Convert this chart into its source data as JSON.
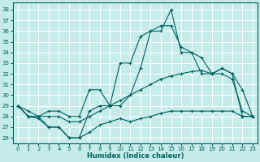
{
  "xlabel": "Humidex (Indice chaleur)",
  "bg_color": "#c5ece8",
  "grid_color": "#ffffff",
  "line_color": "#006060",
  "ylim": [
    25.5,
    38.7
  ],
  "xlim": [
    -0.5,
    23.5
  ],
  "yticks": [
    26,
    27,
    28,
    29,
    30,
    31,
    32,
    33,
    34,
    35,
    36,
    37,
    38
  ],
  "xticks": [
    0,
    1,
    2,
    3,
    4,
    5,
    6,
    7,
    8,
    9,
    10,
    11,
    12,
    13,
    14,
    15,
    16,
    17,
    18,
    19,
    20,
    21,
    22,
    23
  ],
  "series": [
    {
      "x": [
        0,
        1,
        2,
        3,
        4,
        5,
        6,
        7,
        8,
        9,
        10,
        11,
        12,
        13,
        14,
        15,
        16,
        17,
        18,
        19,
        20,
        21,
        22,
        23
      ],
      "y": [
        29.0,
        28.0,
        28.0,
        27.0,
        27.0,
        26.0,
        26.0,
        28.5,
        29.0,
        29.0,
        33.0,
        33.0,
        35.5,
        36.0,
        36.0,
        38.0,
        34.0,
        34.0,
        33.5,
        32.0,
        32.5,
        32.0,
        30.5,
        28.0
      ]
    },
    {
      "x": [
        0,
        1,
        2,
        3,
        4,
        5,
        6,
        7,
        8,
        9,
        10,
        11,
        12,
        13,
        14,
        15,
        16,
        17,
        18,
        19,
        20,
        21,
        22,
        23
      ],
      "y": [
        29.0,
        28.0,
        28.0,
        28.5,
        28.5,
        28.0,
        28.0,
        30.5,
        30.5,
        29.0,
        29.0,
        30.0,
        32.5,
        36.0,
        36.5,
        36.5,
        34.5,
        34.0,
        32.0,
        32.0,
        32.5,
        32.0,
        28.0,
        28.0
      ]
    },
    {
      "x": [
        0,
        1,
        2,
        3,
        4,
        5,
        6,
        7,
        8,
        9,
        10,
        11,
        12,
        13,
        14,
        15,
        16,
        17,
        18,
        19,
        20,
        21,
        22,
        23
      ],
      "y": [
        29.0,
        28.5,
        28.0,
        28.0,
        28.0,
        27.5,
        27.5,
        28.0,
        28.5,
        29.0,
        29.5,
        30.0,
        30.5,
        31.0,
        31.5,
        31.8,
        32.0,
        32.2,
        32.3,
        32.0,
        32.0,
        31.5,
        28.5,
        28.0
      ]
    },
    {
      "x": [
        0,
        1,
        2,
        3,
        4,
        5,
        6,
        7,
        8,
        9,
        10,
        11,
        12,
        13,
        14,
        15,
        16,
        17,
        18,
        19,
        20,
        21,
        22,
        23
      ],
      "y": [
        29.0,
        28.0,
        27.8,
        27.0,
        27.0,
        26.0,
        26.0,
        26.5,
        27.2,
        27.5,
        27.8,
        27.5,
        27.8,
        28.0,
        28.3,
        28.5,
        28.5,
        28.5,
        28.5,
        28.5,
        28.5,
        28.5,
        28.0,
        28.0
      ]
    }
  ]
}
